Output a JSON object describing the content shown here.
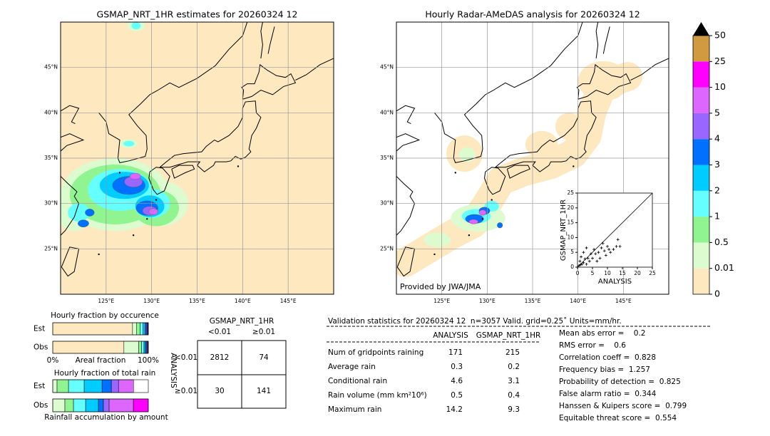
{
  "left_map": {
    "title": "GSMAP_NRT_1HR estimates for 20260324 12",
    "xlim": [
      120,
      150
    ],
    "ylim": [
      20,
      50
    ],
    "xticks": [
      {
        "value": 125,
        "label": "125°E"
      },
      {
        "value": 130,
        "label": "130°E"
      },
      {
        "value": 135,
        "label": "135°E"
      },
      {
        "value": 140,
        "label": "140°E"
      },
      {
        "value": 145,
        "label": "145°E"
      }
    ],
    "yticks": [
      {
        "value": 25,
        "label": "25°N"
      },
      {
        "value": 30,
        "label": "30°N"
      },
      {
        "value": 35,
        "label": "35°N"
      },
      {
        "value": 40,
        "label": "40°N"
      },
      {
        "value": 45,
        "label": "45°N"
      }
    ]
  },
  "right_map": {
    "title": "Hourly Radar-AMeDAS analysis for 20260324 12",
    "credit": "Provided by JWA/JMA",
    "xlim": [
      120,
      150
    ],
    "ylim": [
      20,
      50
    ],
    "xticks": [
      {
        "value": 125,
        "label": "125°E"
      },
      {
        "value": 130,
        "label": "130°E"
      },
      {
        "value": 135,
        "label": "135°E"
      },
      {
        "value": 140,
        "label": "140°E"
      },
      {
        "value": 145,
        "label": "145°E"
      }
    ],
    "yticks": [
      {
        "value": 25,
        "label": "25°N"
      },
      {
        "value": 30,
        "label": "30°N"
      },
      {
        "value": 35,
        "label": "35°N"
      },
      {
        "value": 40,
        "label": "40°N"
      },
      {
        "value": 45,
        "label": "45°N"
      }
    ]
  },
  "colorbar": {
    "levels": [
      0,
      0.01,
      0.5,
      1,
      2,
      3,
      4,
      5,
      10,
      25,
      50
    ],
    "colors": [
      "#fde8c0",
      "#dcfcd0",
      "#90f590",
      "#66ffff",
      "#00ccff",
      "#0070ff",
      "#9966ff",
      "#dd66ff",
      "#ff00ff",
      "#d09a40"
    ],
    "extend_color": "#000000"
  },
  "scatter": {
    "type": "scatter",
    "xlabel": "ANALYSIS",
    "ylabel": "GSMAP_NRT_1HR",
    "xlim": [
      0,
      25
    ],
    "ylim": [
      0,
      25
    ],
    "xticks": [
      0,
      5,
      10,
      15,
      20,
      25
    ],
    "yticks": [
      0,
      5,
      10,
      15,
      20,
      25
    ],
    "x": [
      0.5,
      1,
      1.5,
      2,
      0.8,
      2.5,
      3,
      1.2,
      3.5,
      4,
      2,
      4.5,
      5,
      5.5,
      6,
      7,
      7.5,
      8,
      9,
      9.5,
      10,
      10.5,
      11,
      12,
      13,
      13.5,
      14.2,
      3,
      6.5,
      8.5
    ],
    "values": [
      0.5,
      0.8,
      1,
      1.5,
      2,
      2.8,
      1,
      3.5,
      3,
      2,
      5,
      4.5,
      3,
      6,
      4.5,
      5,
      3,
      6.5,
      5.5,
      4,
      7,
      6,
      5,
      6,
      7,
      9.3,
      7,
      6.5,
      2,
      8
    ]
  },
  "occurrence": {
    "type": "bar",
    "title": "Hourly fraction by occurence",
    "xlabel": "Areal fraction",
    "xlim": [
      0,
      100
    ],
    "xticks": [
      {
        "value": 0,
        "label": "0%"
      },
      {
        "value": 100,
        "label": "100%"
      }
    ],
    "series": [
      {
        "name": "Est",
        "values": [
          83.5,
          4,
          4,
          3,
          2,
          1.5,
          1,
          0.5,
          0.5,
          0
        ]
      },
      {
        "name": "Obs",
        "values": [
          74.5,
          15.5,
          3,
          2.5,
          1.5,
          1,
          0.8,
          0.7,
          0.5,
          0
        ]
      }
    ]
  },
  "total_rain": {
    "type": "bar",
    "title": "Hourly fraction of total rain",
    "xlabel": "Rainfall accumulation by amount",
    "xlim": [
      0,
      100
    ],
    "series": [
      {
        "name": "Est",
        "values": [
          0,
          4.5,
          12,
          16.4,
          18.7,
          9.7,
          7.5,
          15.7,
          0,
          0
        ]
      },
      {
        "name": "Obs",
        "values": [
          0,
          12.7,
          9,
          12.7,
          13.4,
          5.2,
          6,
          25.4,
          15.6,
          0
        ]
      }
    ]
  },
  "contingency": {
    "title": "GSMAP_NRT_1HR",
    "col_labels": [
      "<0.01",
      "≥0.01"
    ],
    "row_title": "ANALYSIS",
    "row_labels": [
      "<0.01",
      "≥0.01"
    ],
    "cells": [
      [
        2812,
        74
      ],
      [
        30,
        141
      ]
    ]
  },
  "validation": {
    "header": "Validation statistics for 20260324 12  n=3057 Valid. grid=0.25˚ Units=mm/hr.",
    "columns": [
      "ANALYSIS",
      "GSMAP_NRT_1HR"
    ],
    "rows": [
      {
        "label": "Num of gridpoints raining",
        "values": [
          171,
          215
        ]
      },
      {
        "label": "Average rain",
        "values": [
          0.3,
          0.2
        ]
      },
      {
        "label": "Conditional rain",
        "values": [
          4.6,
          3.1
        ]
      },
      {
        "label": "Rain volume (mm km²10⁶)",
        "values": [
          0.5,
          0.4
        ]
      },
      {
        "label": "Maximum rain",
        "values": [
          14.2,
          9.3
        ]
      }
    ],
    "scores": [
      "Mean abs error =    0.2",
      "RMS error =    0.6",
      "Correlation coeff =  0.828",
      "Frequency bias =  1.257",
      "Probability of detection =  0.825",
      "False alarm ratio =  0.344",
      "Hanssen & Kuipers score =  0.799",
      "Equitable threat score =  0.554"
    ]
  }
}
